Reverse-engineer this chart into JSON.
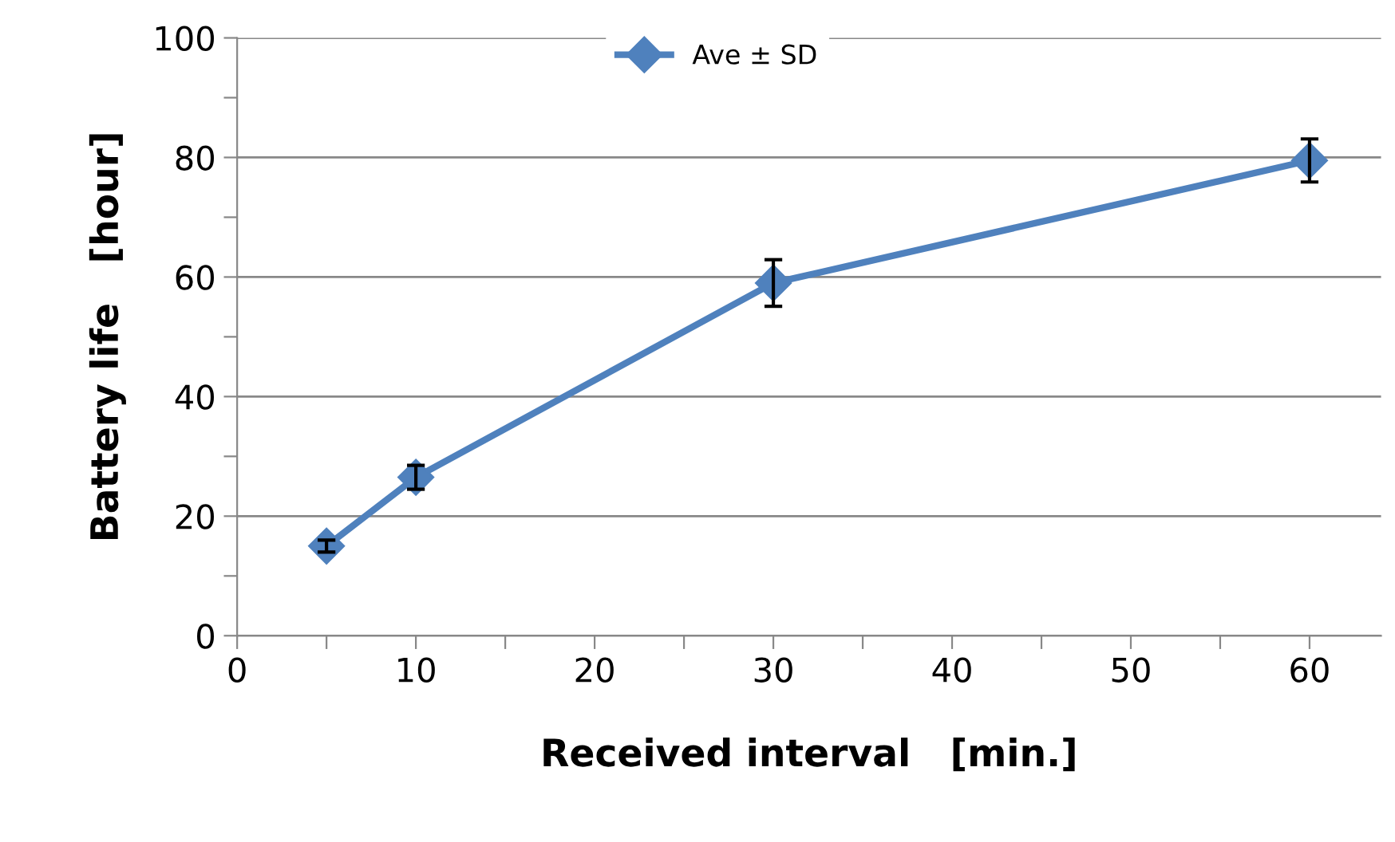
{
  "chart_data": {
    "type": "line",
    "xlabel": "Received interval   [min.]",
    "ylabel": "Battery life   [hour]",
    "x": [
      5,
      10,
      30,
      60
    ],
    "series": [
      {
        "name": "Ave ± SD",
        "color": "#4f81bd",
        "values": [
          15,
          26.5,
          59,
          79.5
        ],
        "errors": [
          1,
          2,
          3.9,
          3.6
        ]
      }
    ],
    "xlim": [
      0,
      64
    ],
    "ylim": [
      0,
      100
    ],
    "xticks": [
      0,
      {
        "value": 5,
        "label": null
      },
      10,
      {
        "value": 15,
        "label": null
      },
      20,
      {
        "value": 25,
        "label": null
      },
      30,
      {
        "value": 35,
        "label": null
      },
      40,
      {
        "value": 45,
        "label": null
      },
      50,
      {
        "value": 55,
        "label": null
      },
      60
    ],
    "yticks": [
      0,
      {
        "value": 10,
        "label": null
      },
      20,
      {
        "value": 30,
        "label": null
      },
      40,
      {
        "value": 50,
        "label": null
      },
      60,
      {
        "value": 70,
        "label": null
      },
      80,
      {
        "value": 90,
        "label": null
      },
      100
    ],
    "grid": "y",
    "legend": "top",
    "marker": "diamond",
    "line_style": "solid"
  }
}
